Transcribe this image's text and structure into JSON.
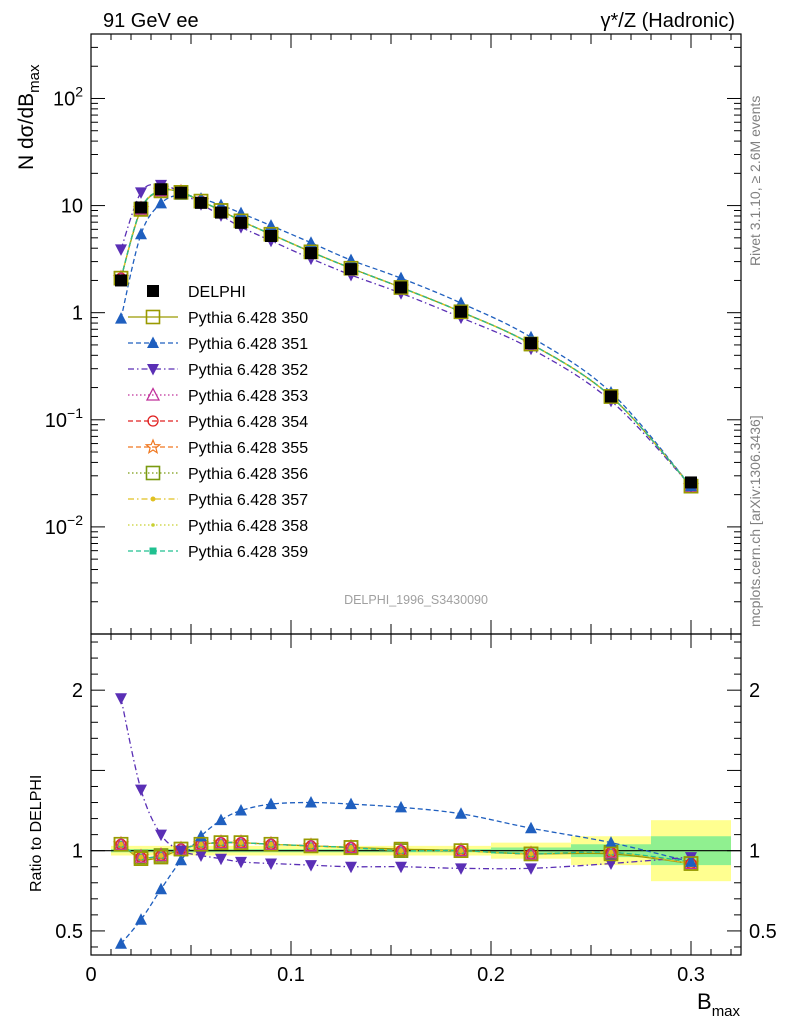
{
  "header": {
    "left_label": "91 GeV ee",
    "right_label": "γ*/Z (Hadronic)"
  },
  "side": {
    "rivet_label": "Rivet 3.1.10, ≥ 2.6M events",
    "mcplots_label": "mcplots.cern.ch [arXiv:1306.3436]"
  },
  "analysis_id": "DELPHI_1996_S3430090",
  "chart_data": [
    {
      "type": "scatter",
      "panel": "main",
      "ylabel": "N dσ/dB_max",
      "y_scale": "log",
      "ylim": [
        0.001,
        400
      ],
      "xlim": [
        0,
        0.325
      ],
      "y_ticks": [
        {
          "value": 100,
          "label": "10^2"
        },
        {
          "value": 10,
          "label": "10"
        },
        {
          "value": 1,
          "label": "1"
        },
        {
          "value": 0.1,
          "label": "10^-1"
        },
        {
          "value": 0.01,
          "label": "10^-2"
        }
      ],
      "x": [
        0.015,
        0.025,
        0.035,
        0.045,
        0.055,
        0.065,
        0.075,
        0.09,
        0.11,
        0.13,
        0.155,
        0.185,
        0.22,
        0.26,
        0.3
      ],
      "legend_placement": "center-left",
      "series": [
        {
          "name": "DELPHI",
          "color": "#000000",
          "marker": "square-filled",
          "line": "none",
          "values": [
            2.0,
            9.6,
            14.2,
            13.2,
            10.6,
            8.6,
            6.9,
            5.2,
            3.6,
            2.55,
            1.72,
            1.02,
            0.52,
            0.165,
            0.026
          ]
        },
        {
          "name": "Pythia 6.428 350",
          "color": "#9a9a00",
          "marker": "square-open",
          "line": "solid",
          "values": [
            2.1,
            9.2,
            13.7,
            13.3,
            11.0,
            9.0,
            7.2,
            5.4,
            3.7,
            2.6,
            1.72,
            1.02,
            0.51,
            0.165,
            0.024
          ]
        },
        {
          "name": "Pythia 6.428 351",
          "color": "#1f5fbf",
          "marker": "triangle-up",
          "line": "dashed",
          "values": [
            0.88,
            5.4,
            10.5,
            12.6,
            11.6,
            10.1,
            8.5,
            6.5,
            4.5,
            3.1,
            2.1,
            1.23,
            0.59,
            0.18,
            0.024
          ]
        },
        {
          "name": "Pythia 6.428 352",
          "color": "#5a2fb5",
          "marker": "triangle-down",
          "line": "dashdot",
          "values": [
            3.9,
            13.3,
            15.6,
            13.3,
            10.3,
            8.1,
            6.3,
            4.7,
            3.2,
            2.25,
            1.52,
            0.9,
            0.46,
            0.15,
            0.024
          ]
        },
        {
          "name": "Pythia 6.428 353",
          "color": "#c0309a",
          "marker": "triangle-open",
          "line": "dotted",
          "values": [
            2.1,
            9.3,
            13.8,
            13.3,
            11.0,
            9.0,
            7.2,
            5.4,
            3.7,
            2.6,
            1.72,
            1.02,
            0.51,
            0.165,
            0.024
          ]
        },
        {
          "name": "Pythia 6.428 354",
          "color": "#e02020",
          "marker": "circle-open",
          "line": "dashed",
          "values": [
            2.1,
            9.3,
            13.8,
            13.3,
            11.0,
            9.0,
            7.2,
            5.4,
            3.7,
            2.6,
            1.72,
            1.02,
            0.51,
            0.165,
            0.024
          ]
        },
        {
          "name": "Pythia 6.428 355",
          "color": "#f07820",
          "marker": "star-open",
          "line": "dashed",
          "values": [
            2.1,
            9.3,
            13.8,
            13.3,
            11.0,
            9.0,
            7.2,
            5.4,
            3.7,
            2.6,
            1.72,
            1.02,
            0.51,
            0.165,
            0.024
          ]
        },
        {
          "name": "Pythia 6.428 356",
          "color": "#7a9a10",
          "marker": "square-open",
          "line": "dotted",
          "values": [
            2.1,
            9.3,
            13.8,
            13.3,
            11.0,
            9.0,
            7.2,
            5.4,
            3.7,
            2.6,
            1.72,
            1.02,
            0.51,
            0.165,
            0.024
          ]
        },
        {
          "name": "Pythia 6.428 357",
          "color": "#e0c020",
          "marker": "dot",
          "line": "dashdot",
          "values": [
            2.1,
            9.3,
            13.8,
            13.3,
            11.0,
            9.0,
            7.2,
            5.4,
            3.7,
            2.6,
            1.72,
            1.02,
            0.51,
            0.165,
            0.024
          ]
        },
        {
          "name": "Pythia 6.428 358",
          "color": "#c8d030",
          "marker": "dot-small",
          "line": "dotted",
          "values": [
            2.1,
            9.3,
            13.8,
            13.3,
            11.0,
            9.0,
            7.2,
            5.4,
            3.7,
            2.6,
            1.72,
            1.02,
            0.51,
            0.165,
            0.024
          ]
        },
        {
          "name": "Pythia 6.428 359",
          "color": "#20c090",
          "marker": "square-filled-small",
          "line": "dashed",
          "values": [
            2.1,
            9.3,
            13.8,
            13.3,
            11.0,
            9.0,
            7.2,
            5.4,
            3.7,
            2.6,
            1.72,
            1.02,
            0.51,
            0.165,
            0.024
          ]
        }
      ]
    },
    {
      "type": "scatter",
      "panel": "ratio",
      "ylabel": "Ratio to DELPHI",
      "xlabel": "B_max",
      "ylim": [
        0.35,
        2.35
      ],
      "xlim": [
        0,
        0.325
      ],
      "y_ticks": [
        {
          "value": 2,
          "label": "2"
        },
        {
          "value": 1,
          "label": "1"
        },
        {
          "value": 0.5,
          "label": "0.5"
        }
      ],
      "x_ticks": [
        {
          "value": 0,
          "label": "0"
        },
        {
          "value": 0.1,
          "label": "0.1"
        },
        {
          "value": 0.2,
          "label": "0.2"
        },
        {
          "value": 0.3,
          "label": "0.3"
        }
      ],
      "x": [
        0.015,
        0.025,
        0.035,
        0.045,
        0.055,
        0.065,
        0.075,
        0.09,
        0.11,
        0.13,
        0.155,
        0.185,
        0.22,
        0.26,
        0.3
      ],
      "bin_edges": [
        0.01,
        0.02,
        0.03,
        0.04,
        0.05,
        0.06,
        0.07,
        0.08,
        0.1,
        0.12,
        0.14,
        0.17,
        0.2,
        0.24,
        0.28,
        0.32
      ],
      "band_stat": [
        0.01,
        0.01,
        0.01,
        0.01,
        0.01,
        0.01,
        0.01,
        0.01,
        0.01,
        0.01,
        0.01,
        0.01,
        0.02,
        0.04,
        0.09
      ],
      "band_total": [
        0.03,
        0.03,
        0.03,
        0.03,
        0.03,
        0.03,
        0.03,
        0.03,
        0.03,
        0.03,
        0.03,
        0.03,
        0.05,
        0.09,
        0.19
      ],
      "band_colors": {
        "stat": "#90f090",
        "total": "#ffff90"
      },
      "series": [
        {
          "name": "Pythia 6.428 350",
          "color": "#9a9a00",
          "marker": "square-open",
          "line": "solid",
          "values": [
            1.04,
            0.95,
            0.96,
            1.01,
            1.04,
            1.05,
            1.05,
            1.04,
            1.03,
            1.02,
            1.01,
            1.0,
            0.98,
            0.98,
            0.92
          ]
        },
        {
          "name": "Pythia 6.428 351",
          "color": "#1f5fbf",
          "marker": "triangle-up",
          "line": "dashed",
          "values": [
            0.42,
            0.57,
            0.76,
            0.94,
            1.09,
            1.19,
            1.25,
            1.29,
            1.3,
            1.29,
            1.27,
            1.23,
            1.14,
            1.05,
            0.93
          ]
        },
        {
          "name": "Pythia 6.428 352",
          "color": "#5a2fb5",
          "marker": "triangle-down",
          "line": "dashdot",
          "values": [
            1.95,
            1.38,
            1.1,
            1.0,
            0.97,
            0.95,
            0.93,
            0.92,
            0.91,
            0.9,
            0.9,
            0.89,
            0.89,
            0.92,
            0.96
          ]
        },
        {
          "name": "Pythia 6.428 353",
          "color": "#c0309a",
          "marker": "triangle-open",
          "line": "dotted",
          "values": [
            1.04,
            0.96,
            0.97,
            1.01,
            1.04,
            1.05,
            1.05,
            1.04,
            1.03,
            1.02,
            1.0,
            1.0,
            0.98,
            0.99,
            0.92
          ]
        },
        {
          "name": "Pythia 6.428 354",
          "color": "#e02020",
          "marker": "circle-open",
          "line": "dashed",
          "values": [
            1.04,
            0.96,
            0.97,
            1.01,
            1.04,
            1.05,
            1.05,
            1.04,
            1.03,
            1.02,
            1.0,
            1.0,
            0.98,
            0.99,
            0.92
          ]
        },
        {
          "name": "Pythia 6.428 355",
          "color": "#f07820",
          "marker": "star-open",
          "line": "dashed",
          "values": [
            1.04,
            0.96,
            0.97,
            1.01,
            1.04,
            1.05,
            1.05,
            1.04,
            1.03,
            1.02,
            1.0,
            1.0,
            0.98,
            0.99,
            0.92
          ]
        },
        {
          "name": "Pythia 6.428 356",
          "color": "#7a9a10",
          "marker": "square-open",
          "line": "dotted",
          "values": [
            1.04,
            0.96,
            0.97,
            1.01,
            1.04,
            1.05,
            1.05,
            1.04,
            1.03,
            1.02,
            1.0,
            1.0,
            0.98,
            0.99,
            0.92
          ]
        },
        {
          "name": "Pythia 6.428 357",
          "color": "#e0c020",
          "marker": "dot",
          "line": "dashdot",
          "values": [
            1.04,
            0.96,
            0.97,
            1.01,
            1.04,
            1.05,
            1.05,
            1.04,
            1.03,
            1.02,
            1.0,
            1.0,
            0.98,
            0.99,
            0.92
          ]
        },
        {
          "name": "Pythia 6.428 358",
          "color": "#c8d030",
          "marker": "dot-small",
          "line": "dotted",
          "values": [
            1.04,
            0.96,
            0.97,
            1.01,
            1.04,
            1.05,
            1.05,
            1.04,
            1.03,
            1.02,
            1.0,
            1.0,
            0.98,
            0.99,
            0.92
          ]
        },
        {
          "name": "Pythia 6.428 359",
          "color": "#20c090",
          "marker": "square-filled-small",
          "line": "dashed",
          "values": [
            1.04,
            0.96,
            0.97,
            1.01,
            1.04,
            1.05,
            1.05,
            1.04,
            1.03,
            1.02,
            1.0,
            1.0,
            0.98,
            0.99,
            0.93
          ]
        }
      ]
    }
  ]
}
